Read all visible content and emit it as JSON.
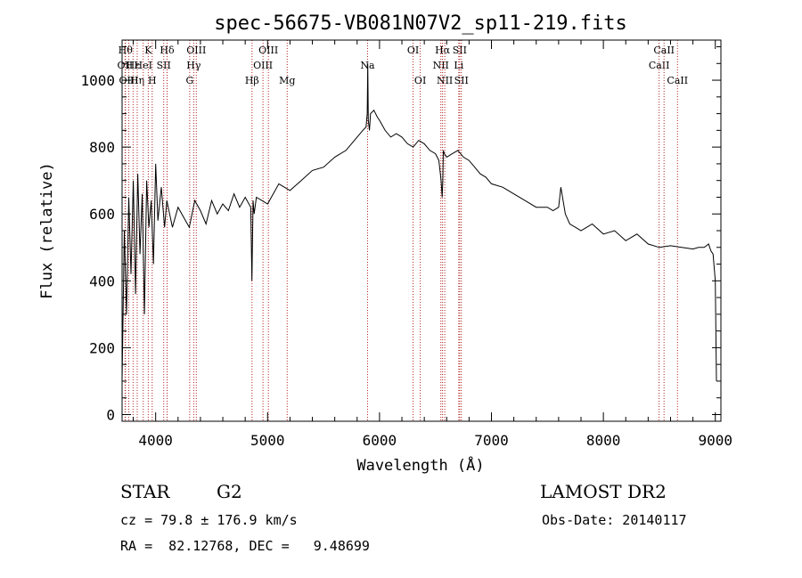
{
  "chart_data": {
    "type": "line",
    "title": "spec-56675-VB081N07V2_sp11-219.fits",
    "xlabel": "Wavelength (Å)",
    "ylabel": "Flux (relative)",
    "xlim": [
      3700,
      9050
    ],
    "ylim": [
      -20,
      1120
    ],
    "xticks": [
      4000,
      5000,
      6000,
      7000,
      8000,
      9000
    ],
    "yticks": [
      0,
      200,
      400,
      600,
      800,
      1000
    ],
    "line_color": "#000000",
    "marker_color": "#b22222",
    "series": [
      {
        "x": [
          3700,
          3720,
          3740,
          3760,
          3780,
          3800,
          3820,
          3840,
          3860,
          3880,
          3900,
          3920,
          3940,
          3960,
          3980,
          4000,
          4020,
          4050,
          4080,
          4100,
          4150,
          4200,
          4250,
          4300,
          4350,
          4400,
          4450,
          4500,
          4550,
          4600,
          4650,
          4700,
          4750,
          4800,
          4850,
          4860,
          4870,
          4880,
          4900,
          4950,
          5000,
          5050,
          5100,
          5150,
          5200,
          5300,
          5400,
          5500,
          5600,
          5700,
          5750,
          5800,
          5850,
          5880,
          5890,
          5895,
          5900,
          5910,
          5920,
          5950,
          5980,
          6000,
          6050,
          6100,
          6150,
          6200,
          6250,
          6300,
          6350,
          6400,
          6450,
          6500,
          6530,
          6550,
          6560,
          6565,
          6570,
          6580,
          6600,
          6650,
          6700,
          6750,
          6800,
          6850,
          6900,
          6950,
          7000,
          7100,
          7200,
          7300,
          7400,
          7500,
          7550,
          7600,
          7620,
          7640,
          7660,
          7700,
          7750,
          7800,
          7900,
          8000,
          8100,
          8200,
          8300,
          8400,
          8500,
          8600,
          8700,
          8800,
          8850,
          8900,
          8920,
          8940,
          8960,
          8980,
          9000,
          9010
        ],
        "y": [
          100,
          550,
          300,
          650,
          420,
          700,
          360,
          720,
          480,
          660,
          300,
          700,
          560,
          640,
          450,
          750,
          580,
          680,
          560,
          640,
          560,
          620,
          590,
          560,
          640,
          610,
          570,
          640,
          600,
          630,
          610,
          660,
          620,
          650,
          620,
          400,
          640,
          600,
          650,
          640,
          630,
          660,
          690,
          680,
          670,
          700,
          730,
          740,
          770,
          790,
          810,
          830,
          850,
          860,
          900,
          1050,
          880,
          850,
          900,
          910,
          890,
          880,
          850,
          830,
          840,
          830,
          810,
          800,
          820,
          810,
          790,
          780,
          760,
          700,
          650,
          700,
          790,
          780,
          770,
          780,
          790,
          770,
          760,
          740,
          720,
          710,
          690,
          680,
          660,
          640,
          620,
          620,
          610,
          620,
          680,
          640,
          600,
          570,
          560,
          550,
          570,
          540,
          550,
          520,
          540,
          510,
          500,
          505,
          500,
          495,
          500,
          500,
          505,
          510,
          490,
          480,
          400,
          100
        ]
      }
    ],
    "lines": [
      {
        "w": 3730,
        "label": "Hθ",
        "row": 0
      },
      {
        "w": 3727,
        "label": "OII",
        "row": 1
      },
      {
        "w": 3760,
        "label": "OIII",
        "row": 2
      },
      {
        "w": 3798,
        "label": "Hε",
        "row": 1
      },
      {
        "w": 3835,
        "label": "Hη",
        "row": 2
      },
      {
        "w": 3889,
        "label": "HeI",
        "row": 1
      },
      {
        "w": 3934,
        "label": "K",
        "row": 0
      },
      {
        "w": 3969,
        "label": "H",
        "row": 2
      },
      {
        "w": 4072,
        "label": "SII",
        "row": 1
      },
      {
        "w": 4102,
        "label": "Hδ",
        "row": 0
      },
      {
        "w": 4304,
        "label": "G",
        "row": 2
      },
      {
        "w": 4340,
        "label": "Hγ",
        "row": 1
      },
      {
        "w": 4363,
        "label": "OIII",
        "row": 0
      },
      {
        "w": 4861,
        "label": "Hβ",
        "row": 2
      },
      {
        "w": 4959,
        "label": "OIII",
        "row": 1
      },
      {
        "w": 5007,
        "label": "OIII",
        "row": 0
      },
      {
        "w": 5175,
        "label": "Mg",
        "row": 2
      },
      {
        "w": 5893,
        "label": "Na",
        "row": 1
      },
      {
        "w": 6300,
        "label": "OI",
        "row": 0
      },
      {
        "w": 6364,
        "label": "OI",
        "row": 2
      },
      {
        "w": 6548,
        "label": "NII",
        "row": 1
      },
      {
        "w": 6563,
        "label": "Hα",
        "row": 0
      },
      {
        "w": 6583,
        "label": "NII",
        "row": 2
      },
      {
        "w": 6708,
        "label": "Li",
        "row": 1
      },
      {
        "w": 6716,
        "label": "SII",
        "row": 0
      },
      {
        "w": 6731,
        "label": "SII",
        "row": 2
      },
      {
        "w": 8498,
        "label": "CaII",
        "row": 1
      },
      {
        "w": 8542,
        "label": "CaII",
        "row": 0
      },
      {
        "w": 8662,
        "label": "CaII",
        "row": 2
      }
    ]
  },
  "info": {
    "object_class": "STAR",
    "subclass": "G2",
    "survey": "LAMOST DR2",
    "cz": "cz = 79.8 ± 176.9 km/s",
    "obs_date": "Obs-Date: 20140117",
    "coords": "RA =  82.12768, DEC =   9.48699"
  }
}
